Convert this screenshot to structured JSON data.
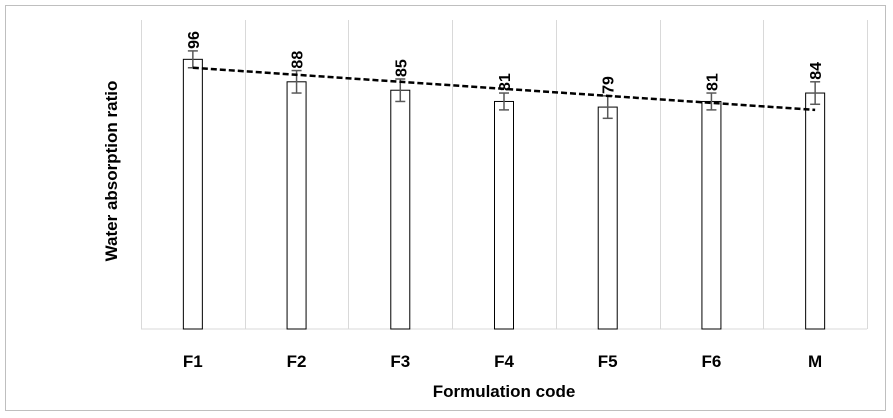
{
  "chart_data": {
    "type": "bar",
    "title": "",
    "xlabel": "Formulation code",
    "ylabel": "Water absorption ratio",
    "categories": [
      "F1",
      "F2",
      "F3",
      "F4",
      "F5",
      "F6",
      "M"
    ],
    "values": [
      96,
      88,
      85,
      81,
      79,
      81,
      84
    ],
    "error": [
      3,
      4,
      4,
      3,
      4,
      3,
      4
    ],
    "data_labels": [
      "96",
      "88",
      "85",
      "81",
      "79",
      "81",
      "84"
    ],
    "ylim": [
      0,
      110
    ],
    "grid": "vertical",
    "trendline": {
      "style": "dashed",
      "values": [
        93,
        90.5,
        88,
        85.5,
        83,
        80.5,
        78
      ]
    },
    "colors": {
      "bar_fill": "#ffffff",
      "bar_stroke": "#000000",
      "error_bar": "#595959",
      "gridline": "#d9d9d9",
      "trendline": "#000000",
      "frame": "#bfbfbf"
    }
  }
}
